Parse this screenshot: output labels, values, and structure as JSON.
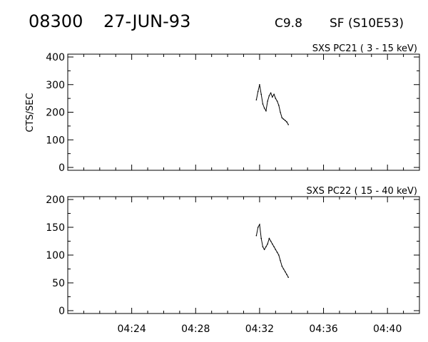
{
  "header": {
    "event_id": "08300",
    "date": "27-JUN-93",
    "flare_class": "C9.8",
    "location": "SF (S10E53)"
  },
  "chart_data": [
    {
      "type": "line",
      "title": "SXS PC21  (  3 - 15 keV)",
      "ylabel": "CTS/SEC",
      "xlabel": "",
      "xlim": [
        "04:20",
        "04:42"
      ],
      "ylim": [
        0,
        400
      ],
      "x_ticks": [
        "04:24",
        "04:28",
        "04:32",
        "04:36",
        "04:40"
      ],
      "show_x_tick_labels": false,
      "y_ticks": [
        0,
        100,
        200,
        300,
        400
      ],
      "grid": false,
      "series": [
        {
          "x": [
            "04:31:48",
            "04:31:54",
            "04:32:00",
            "04:32:06",
            "04:32:12",
            "04:32:18",
            "04:32:24",
            "04:32:30",
            "04:32:36",
            "04:32:42",
            "04:32:48",
            "04:32:54",
            "04:33:00",
            "04:33:06",
            "04:33:12",
            "04:33:18",
            "04:33:24",
            "04:33:30",
            "04:33:36",
            "04:33:42",
            "04:33:48"
          ],
          "values": [
            245,
            275,
            300,
            265,
            230,
            215,
            205,
            240,
            260,
            270,
            255,
            265,
            250,
            240,
            225,
            200,
            180,
            175,
            170,
            165,
            155
          ]
        }
      ]
    },
    {
      "type": "line",
      "title": "SXS PC22  ( 15 - 40 keV)",
      "ylabel": "",
      "xlabel": "",
      "xlim": [
        "04:20",
        "04:42"
      ],
      "ylim": [
        0,
        200
      ],
      "x_ticks": [
        "04:24",
        "04:28",
        "04:32",
        "04:36",
        "04:40"
      ],
      "show_x_tick_labels": true,
      "y_ticks": [
        0,
        50,
        100,
        150,
        200
      ],
      "grid": false,
      "series": [
        {
          "x": [
            "04:31:48",
            "04:31:54",
            "04:32:00",
            "04:32:06",
            "04:32:12",
            "04:32:18",
            "04:32:24",
            "04:32:30",
            "04:32:36",
            "04:32:42",
            "04:32:48",
            "04:32:54",
            "04:33:00",
            "04:33:06",
            "04:33:12",
            "04:33:18",
            "04:33:24",
            "04:33:30",
            "04:33:36",
            "04:33:42",
            "04:33:48"
          ],
          "values": [
            135,
            150,
            155,
            130,
            115,
            110,
            115,
            120,
            130,
            125,
            120,
            115,
            110,
            105,
            100,
            90,
            80,
            75,
            70,
            65,
            60
          ]
        }
      ]
    }
  ]
}
